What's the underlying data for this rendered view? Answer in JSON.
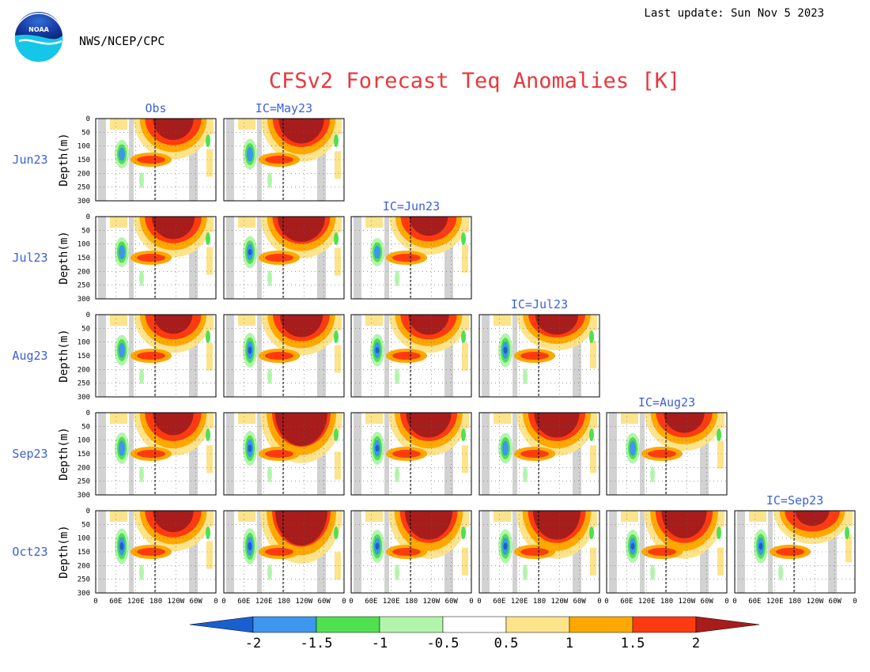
{
  "header": {
    "last_update": "Last update: Sun Nov 5 2023",
    "agency": "NWS/NCEP/CPC",
    "logo_text": "NOAA"
  },
  "colors": {
    "title": "#e8383d",
    "label": "#3a5fd9",
    "below_2": "#1a5fcf",
    "below_1_5": "#3d96ef",
    "below_1": "#4fe04f",
    "below_0_5": "#b2f5aa",
    "above_0_5": "#fde38a",
    "above_1": "#ffa800",
    "above_1_5": "#ff3a10",
    "above_2": "#a81c1c",
    "land_mask": "#d2d2d2"
  },
  "chart_data": {
    "type": "heatmap",
    "title": "CFSv2 Forecast Teq Anomalies [K]",
    "ylabel": "Depth(m)",
    "y_ticks": [
      "0",
      "50",
      "100",
      "150",
      "200",
      "250",
      "300"
    ],
    "x_ticks": [
      "0",
      "60E",
      "120E",
      "180",
      "120W",
      "60W",
      "0"
    ],
    "row_labels": [
      "Jun23",
      "Jul23",
      "Aug23",
      "Sep23",
      "Oct23"
    ],
    "col_titles": [
      "Obs",
      "IC=May23",
      "IC=Jun23",
      "IC=Jul23",
      "IC=Aug23",
      "IC=Sep23"
    ],
    "colorbar": {
      "levels": [
        "-2",
        "-1.5",
        "-1",
        "-0.5",
        "0.5",
        "1",
        "1.5",
        "2"
      ]
    },
    "panels": [
      {
        "row": 0,
        "col": 0,
        "warm": 0.75,
        "depth": 0.7,
        "cold": 0.4
      },
      {
        "row": 0,
        "col": 1,
        "warm": 0.85,
        "depth": 0.75,
        "cold": 0.55
      },
      {
        "row": 1,
        "col": 0,
        "warm": 0.8,
        "depth": 0.7,
        "cold": 0.5
      },
      {
        "row": 1,
        "col": 1,
        "warm": 0.9,
        "depth": 0.72,
        "cold": 0.65
      },
      {
        "row": 1,
        "col": 2,
        "warm": 0.7,
        "depth": 0.65,
        "cold": 0.4
      },
      {
        "row": 2,
        "col": 0,
        "warm": 0.7,
        "depth": 0.65,
        "cold": 0.55
      },
      {
        "row": 2,
        "col": 1,
        "warm": 0.8,
        "depth": 0.7,
        "cold": 0.8
      },
      {
        "row": 2,
        "col": 2,
        "warm": 0.75,
        "depth": 0.65,
        "cold": 0.65
      },
      {
        "row": 2,
        "col": 3,
        "warm": 0.8,
        "depth": 0.6,
        "cold": 0.75
      },
      {
        "row": 3,
        "col": 0,
        "warm": 0.75,
        "depth": 0.75,
        "cold": 0.6
      },
      {
        "row": 3,
        "col": 1,
        "warm": 1.0,
        "depth": 0.9,
        "cold": 0.8
      },
      {
        "row": 3,
        "col": 2,
        "warm": 0.85,
        "depth": 0.75,
        "cold": 0.7
      },
      {
        "row": 3,
        "col": 3,
        "warm": 0.85,
        "depth": 0.75,
        "cold": 0.55
      },
      {
        "row": 3,
        "col": 4,
        "warm": 0.75,
        "depth": 0.65,
        "cold": 0.55
      },
      {
        "row": 4,
        "col": 0,
        "warm": 0.75,
        "depth": 0.7,
        "cold": 0.85
      },
      {
        "row": 4,
        "col": 1,
        "warm": 1.0,
        "depth": 0.95,
        "cold": 0.9
      },
      {
        "row": 4,
        "col": 2,
        "warm": 0.9,
        "depth": 0.85,
        "cold": 0.7
      },
      {
        "row": 4,
        "col": 3,
        "warm": 0.9,
        "depth": 0.85,
        "cold": 0.75
      },
      {
        "row": 4,
        "col": 4,
        "warm": 0.85,
        "depth": 0.85,
        "cold": 0.7
      },
      {
        "row": 4,
        "col": 5,
        "warm": 0.6,
        "depth": 0.55,
        "cold": 0.75
      }
    ]
  }
}
